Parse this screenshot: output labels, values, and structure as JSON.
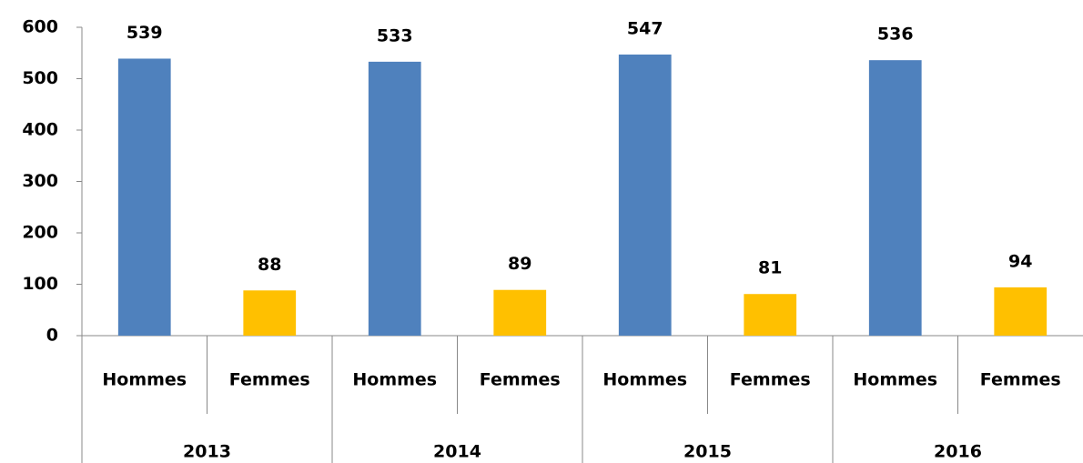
{
  "chart_data": {
    "type": "bar",
    "categories": [
      "Hommes",
      "Femmes",
      "Hommes",
      "Femmes",
      "Hommes",
      "Femmes",
      "Hommes",
      "Femmes"
    ],
    "groups": [
      "2013",
      "2014",
      "2015",
      "2016"
    ],
    "values": [
      539,
      88,
      533,
      89,
      547,
      81,
      536,
      94
    ],
    "colors": [
      "#4f81bd",
      "#ffc000",
      "#4f81bd",
      "#ffc000",
      "#4f81bd",
      "#ffc000",
      "#4f81bd",
      "#ffc000"
    ],
    "ylim": [
      0,
      600
    ],
    "yticks": [
      0,
      100,
      200,
      300,
      400,
      500,
      600
    ],
    "grid": false
  }
}
